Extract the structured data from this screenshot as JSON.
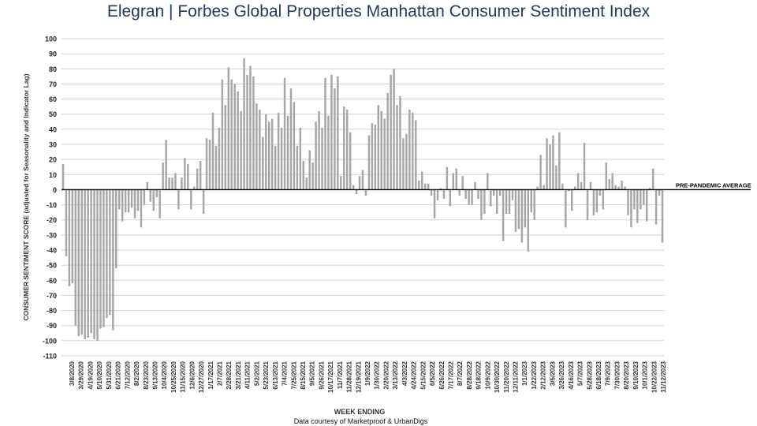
{
  "title": {
    "brand": "Elegran | Forbes Global Properties",
    "subject": "Manhattan Consumer Sentiment Index"
  },
  "credit": "Data courtesy of Marketproof & UrbanDigs",
  "colors": {
    "bar": "#a6a6a6",
    "grid": "#d0d0d0",
    "zeroline": "#000000",
    "title": "#1f3a5f"
  },
  "chart_data": {
    "type": "bar",
    "xlabel": "WEEK ENDING",
    "ylabel": "CONSUMER SENTIMENT SCORE (adjusted for Seasonality and Indicator Lag)",
    "ylim": [
      -110,
      100
    ],
    "yticks": [
      100,
      90,
      80,
      70,
      60,
      50,
      40,
      30,
      20,
      10,
      0,
      -10,
      -20,
      -30,
      -40,
      -50,
      -60,
      -70,
      -80,
      -90,
      -100,
      -110
    ],
    "grid": true,
    "reference_line": {
      "value": 0,
      "label": "PRE-PANDEMIC  AVERAGE"
    },
    "x_tick_labels": [
      "3/8/2020",
      "3/29/2020",
      "4/19/2020",
      "5/10/2020",
      "5/31/2020",
      "6/21/2020",
      "7/12/2020",
      "8/2/2020",
      "8/23/2020",
      "9/13/2020",
      "10/4/2020",
      "10/25/2020",
      "11/15/2020",
      "12/6/2020",
      "12/27/2020",
      "1/17/2021",
      "2/7/2021",
      "2/28/2021",
      "3/21/2021",
      "4/11/2021",
      "5/2/2021",
      "5/23/2021",
      "6/13/2021",
      "7/4/2021",
      "7/25/2021",
      "8/15/2021",
      "9/5/2021",
      "9/26/2021",
      "10/17/2021",
      "11/7/2021",
      "11/28/2021",
      "12/19/2021",
      "1/9/2022",
      "1/30/2022",
      "2/20/2022",
      "3/13/2022",
      "4/3/2022",
      "4/24/2022",
      "5/15/2022",
      "6/5/2022",
      "6/26/2022",
      "7/17/2022",
      "8/7/2022",
      "8/28/2022",
      "9/18/2022",
      "10/9/2022",
      "10/30/2022",
      "11/20/2022",
      "12/11/2022",
      "1/1/2023",
      "1/22/2023",
      "2/12/2023",
      "3/5/2023",
      "3/26/2023",
      "4/16/2023",
      "5/7/2023",
      "5/28/2023",
      "6/18/2023",
      "7/9/2023",
      "7/30/2023",
      "8/20/2023",
      "9/10/2023",
      "10/1/2023",
      "10/22/2023",
      "11/12/2023"
    ],
    "values": [
      17,
      -44,
      -64,
      -62,
      -90,
      -97,
      -96,
      -99,
      -98,
      -95,
      -99,
      -100,
      -92,
      -91,
      -85,
      -83,
      -93,
      -52,
      -13,
      -21,
      -15,
      -15,
      -12,
      -19,
      -14,
      -25,
      -10,
      5,
      -8,
      -14,
      -5,
      -19,
      18,
      33,
      8,
      8,
      11,
      -13,
      8,
      21,
      17,
      -13,
      2,
      14,
      19,
      -16,
      34,
      33,
      51,
      29,
      41,
      73,
      56,
      81,
      73,
      70,
      65,
      52,
      87,
      76,
      82,
      75,
      57,
      53,
      35,
      50,
      45,
      47,
      29,
      51,
      41,
      74,
      49,
      67,
      58,
      29,
      41,
      19,
      8,
      26,
      18,
      45,
      52,
      41,
      74,
      49,
      76,
      67,
      75,
      9,
      55,
      53,
      38,
      3,
      -3,
      9,
      13,
      -4,
      36,
      44,
      43,
      56,
      52,
      47,
      64,
      76,
      80,
      56,
      62,
      34,
      37,
      53,
      51,
      46,
      6,
      12,
      4,
      4,
      -4,
      -19,
      -7,
      1,
      -6,
      15,
      -11,
      11,
      14,
      -4,
      9,
      -6,
      -10,
      -10,
      5,
      -6,
      -20,
      -16,
      11,
      -11,
      -4,
      -16,
      -4,
      -34,
      -16,
      -16,
      -7,
      -28,
      -26,
      -35,
      -25,
      -41,
      -15,
      -20,
      2,
      23,
      3,
      34,
      30,
      36,
      16,
      38,
      4,
      -25,
      -1,
      -14,
      2,
      11,
      5,
      31,
      -20,
      5,
      -17,
      -15,
      -4,
      -13,
      18,
      7,
      11,
      3,
      2,
      6,
      2,
      -17,
      -25,
      -13,
      -22,
      -13,
      -10,
      -21,
      1,
      14,
      -23,
      -4,
      -35
    ]
  }
}
